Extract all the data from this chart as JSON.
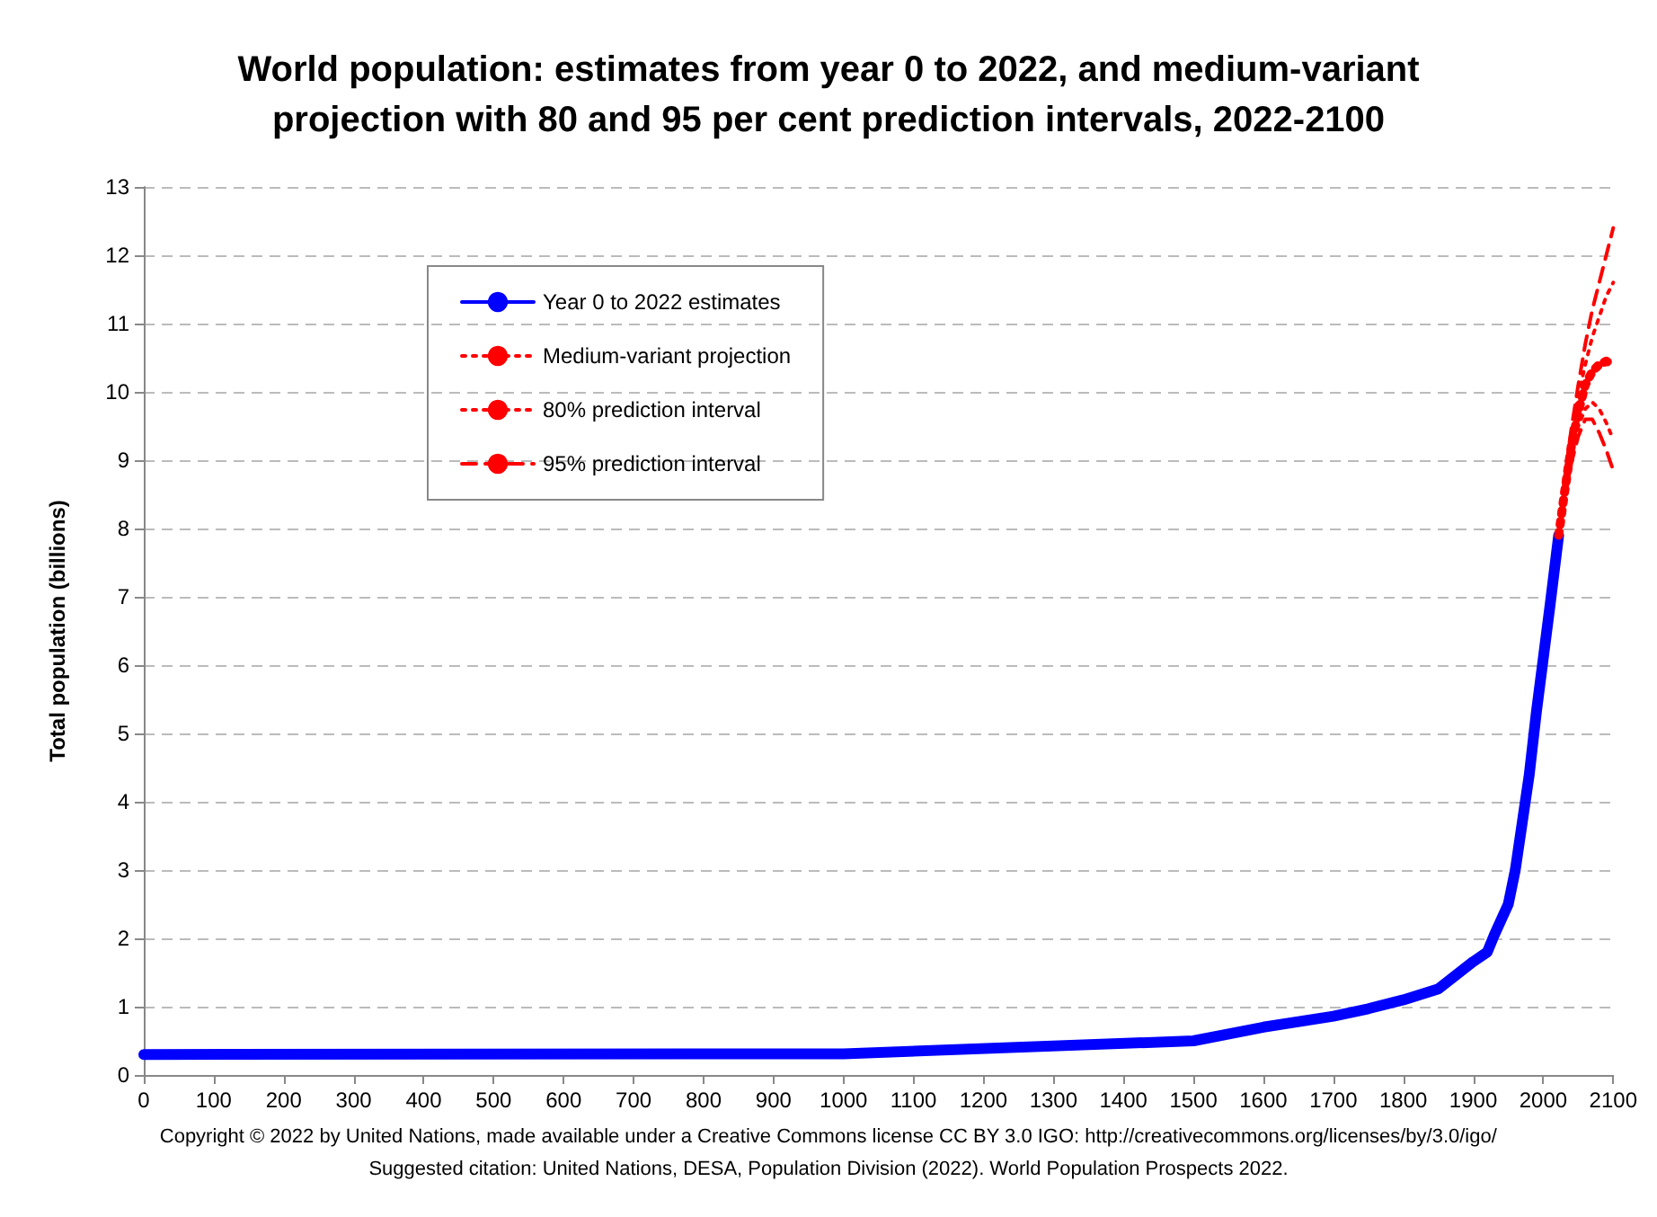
{
  "chart_data": {
    "type": "line",
    "title": "World population: estimates from year 0 to 2022, and medium-variant\nprojection with 80 and 95 per cent prediction intervals, 2022-2100",
    "ylabel": "Total population (billions)",
    "xlim": [
      0,
      2100
    ],
    "xticks": [
      0,
      100,
      200,
      300,
      400,
      500,
      600,
      700,
      800,
      900,
      1000,
      1100,
      1200,
      1300,
      1400,
      1500,
      1600,
      1700,
      1800,
      1900,
      2000,
      2100
    ],
    "ylim": [
      0,
      13
    ],
    "yticks": [
      0,
      1,
      2,
      3,
      4,
      5,
      6,
      7,
      8,
      9,
      10,
      11,
      12,
      13
    ],
    "grid": "y",
    "legend": "top left",
    "series": [
      {
        "name": "Year 0 to 2022 estimates",
        "color": "#0000ff",
        "line_style": "solid",
        "x": [
          0,
          1000,
          1500,
          1600,
          1700,
          1750,
          1800,
          1850,
          1900,
          1920,
          1930,
          1950,
          1960,
          1970,
          1980,
          1990,
          2000,
          2010,
          2022
        ],
        "values": [
          0.3,
          0.31,
          0.5,
          0.7,
          0.86,
          0.97,
          1.1,
          1.26,
          1.66,
          1.8,
          2.05,
          2.5,
          3.0,
          3.7,
          4.4,
          5.3,
          6.1,
          6.9,
          7.9
        ]
      },
      {
        "name": "Medium-variant projection",
        "color": "#ff0000",
        "line_style": "dotted",
        "x": [
          2022,
          2030,
          2040,
          2050,
          2060,
          2070,
          2080,
          2090,
          2100
        ],
        "values": [
          7.9,
          8.5,
          9.2,
          9.7,
          10.1,
          10.3,
          10.4,
          10.45,
          10.4
        ]
      },
      {
        "name": "80% prediction interval",
        "color": "#ff0000",
        "line_style": "dotted",
        "x": [
          2022,
          2030,
          2040,
          2050,
          2060,
          2070,
          2080,
          2090,
          2100
        ],
        "values": [
          7.9,
          8.6,
          9.3,
          9.95,
          10.4,
          10.8,
          11.1,
          11.4,
          11.6
        ]
      },
      {
        "color": "#ff0000",
        "line_style": "dotted",
        "x": [
          2022,
          2030,
          2040,
          2050,
          2060,
          2070,
          2080,
          2090,
          2100
        ],
        "values": [
          7.9,
          8.45,
          9.05,
          9.5,
          9.75,
          9.85,
          9.75,
          9.55,
          9.3
        ]
      },
      {
        "name": "95% prediction interval",
        "color": "#ff0000",
        "line_style": "dashed",
        "x": [
          2022,
          2030,
          2040,
          2050,
          2060,
          2070,
          2080,
          2090,
          2100
        ],
        "values": [
          7.9,
          8.7,
          9.45,
          10.1,
          10.7,
          11.2,
          11.6,
          12.0,
          12.4
        ]
      },
      {
        "color": "#ff0000",
        "line_style": "dashed",
        "x": [
          2022,
          2030,
          2040,
          2050,
          2060,
          2070,
          2080,
          2090,
          2100
        ],
        "values": [
          7.9,
          8.4,
          8.95,
          9.35,
          9.6,
          9.6,
          9.4,
          9.15,
          8.85
        ]
      }
    ],
    "annotations": [
      "Copyright © 2022 by United Nations, made available under a Creative Commons license CC BY 3.0 IGO: http://creativecommons.org/licenses/by/3.0/igo/",
      "Suggested citation: United Nations, DESA, Population Division (2022). World Population Prospects 2022."
    ]
  }
}
